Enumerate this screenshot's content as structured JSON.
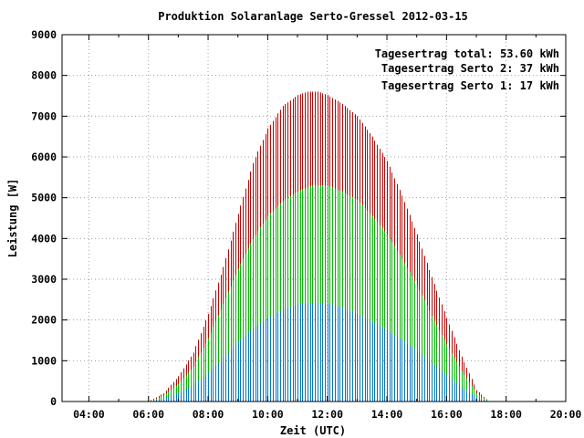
{
  "chart_data": {
    "type": "bar",
    "title": "Produktion Solaranlage Serto-Gressel 2012-03-15",
    "xlabel": "Zeit (UTC)",
    "ylabel": "Leistung [W]",
    "xlim": [
      3.1,
      20.0
    ],
    "ylim": [
      0,
      9000
    ],
    "x_ticks": [
      "04:00",
      "06:00",
      "08:00",
      "10:00",
      "12:00",
      "14:00",
      "16:00",
      "18:00",
      "20:00"
    ],
    "y_ticks": [
      "0",
      "1000",
      "2000",
      "3000",
      "4000",
      "5000",
      "6000",
      "7000",
      "8000",
      "9000"
    ],
    "grid": true,
    "legend_position": "top-right",
    "legend": [
      {
        "label": "Tagesertrag total: 53.60 kWh",
        "color": "#cc0000"
      },
      {
        "label": "Tagesertrag Serto 2: 37 kWh",
        "color": "#00bb00"
      },
      {
        "label": "Tagesertrag Serto 1: 17 kWh",
        "color": "#0077cc"
      }
    ],
    "x_interval_minutes": 5,
    "x_start": "06:00",
    "x_end": "17:25",
    "series": [
      {
        "name": "Tagesertrag total: 53.60 kWh",
        "color": "#cc0000",
        "keypoints": [
          [
            "06:00",
            0
          ],
          [
            "06:30",
            200
          ],
          [
            "07:00",
            620
          ],
          [
            "07:30",
            1200
          ],
          [
            "08:00",
            2150
          ],
          [
            "08:30",
            3300
          ],
          [
            "09:00",
            4600
          ],
          [
            "09:30",
            5850
          ],
          [
            "10:00",
            6700
          ],
          [
            "10:30",
            7250
          ],
          [
            "11:00",
            7520
          ],
          [
            "11:20",
            7600
          ],
          [
            "11:40",
            7600
          ],
          [
            "12:00",
            7520
          ],
          [
            "12:30",
            7300
          ],
          [
            "13:00",
            7000
          ],
          [
            "13:30",
            6500
          ],
          [
            "14:00",
            5900
          ],
          [
            "14:30",
            5050
          ],
          [
            "15:00",
            4100
          ],
          [
            "15:30",
            3050
          ],
          [
            "16:00",
            2050
          ],
          [
            "16:30",
            1100
          ],
          [
            "17:00",
            280
          ],
          [
            "17:25",
            0
          ]
        ]
      },
      {
        "name": "Tagesertrag Serto 2: 37 kWh",
        "color": "#00bb00",
        "keypoints": [
          [
            "06:00",
            0
          ],
          [
            "06:30",
            140
          ],
          [
            "07:00",
            430
          ],
          [
            "07:30",
            850
          ],
          [
            "08:00",
            1550
          ],
          [
            "08:30",
            2400
          ],
          [
            "09:00",
            3250
          ],
          [
            "09:30",
            4000
          ],
          [
            "10:00",
            4550
          ],
          [
            "10:30",
            4920
          ],
          [
            "11:00",
            5150
          ],
          [
            "11:30",
            5300
          ],
          [
            "12:00",
            5300
          ],
          [
            "12:30",
            5150
          ],
          [
            "13:00",
            4950
          ],
          [
            "13:30",
            4550
          ],
          [
            "14:00",
            4100
          ],
          [
            "14:30",
            3500
          ],
          [
            "15:00",
            2850
          ],
          [
            "15:30",
            2100
          ],
          [
            "16:00",
            1400
          ],
          [
            "16:30",
            750
          ],
          [
            "17:00",
            200
          ],
          [
            "17:25",
            0
          ]
        ]
      },
      {
        "name": "Tagesertrag Serto 1: 17 kWh",
        "color": "#0077cc",
        "keypoints": [
          [
            "06:00",
            0
          ],
          [
            "06:30",
            70
          ],
          [
            "07:00",
            200
          ],
          [
            "07:30",
            400
          ],
          [
            "08:00",
            700
          ],
          [
            "08:30",
            1050
          ],
          [
            "09:00",
            1450
          ],
          [
            "09:30",
            1800
          ],
          [
            "10:00",
            2050
          ],
          [
            "10:30",
            2250
          ],
          [
            "11:00",
            2380
          ],
          [
            "11:30",
            2420
          ],
          [
            "12:00",
            2400
          ],
          [
            "12:30",
            2300
          ],
          [
            "13:00",
            2150
          ],
          [
            "13:30",
            1950
          ],
          [
            "14:00",
            1750
          ],
          [
            "14:30",
            1500
          ],
          [
            "15:00",
            1250
          ],
          [
            "15:30",
            950
          ],
          [
            "16:00",
            650
          ],
          [
            "16:30",
            350
          ],
          [
            "17:00",
            100
          ],
          [
            "17:25",
            0
          ]
        ]
      }
    ]
  }
}
